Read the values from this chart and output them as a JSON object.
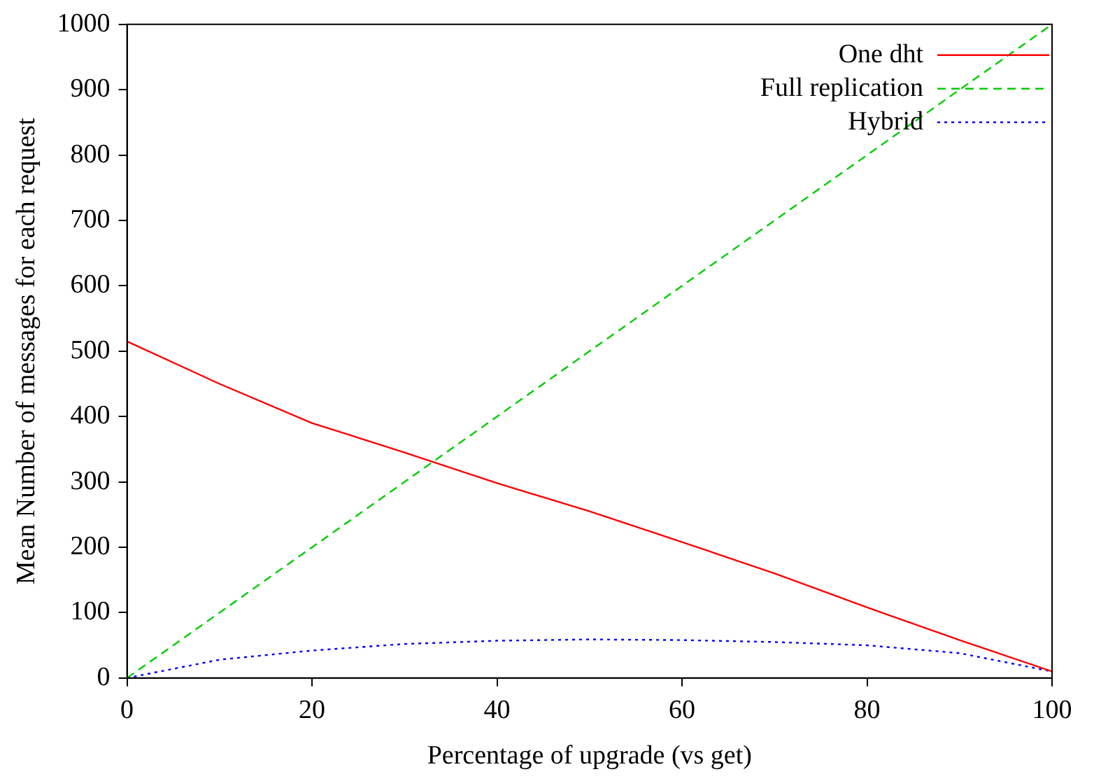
{
  "chart_data": {
    "type": "line",
    "xlabel": "Percentage of upgrade (vs get)",
    "ylabel": "Mean Number of messages for each request",
    "x": [
      0,
      10,
      20,
      30,
      40,
      50,
      60,
      70,
      80,
      90,
      100
    ],
    "series": [
      {
        "name": "One dht",
        "color": "#ff0000",
        "line_style": "solid",
        "values": [
          515,
          450,
          390,
          345,
          298,
          255,
          208,
          160,
          108,
          58,
          10
        ]
      },
      {
        "name": "Full replication",
        "color": "#00cc00",
        "line_style": "dashed",
        "values": [
          0,
          100,
          200,
          300,
          400,
          500,
          600,
          700,
          800,
          900,
          1000
        ]
      },
      {
        "name": "Hybrid",
        "color": "#0000ff",
        "line_style": "dotted",
        "values": [
          0,
          28,
          42,
          52,
          57,
          59,
          58,
          55,
          50,
          38,
          10
        ]
      }
    ],
    "xlim": [
      0,
      100
    ],
    "xticks": [
      0,
      20,
      40,
      60,
      80,
      100
    ],
    "ylim": [
      0,
      1000
    ],
    "yticks": [
      0,
      100,
      200,
      300,
      400,
      500,
      600,
      700,
      800,
      900,
      1000
    ],
    "grid": false,
    "legend": "top right",
    "marker": "none"
  }
}
